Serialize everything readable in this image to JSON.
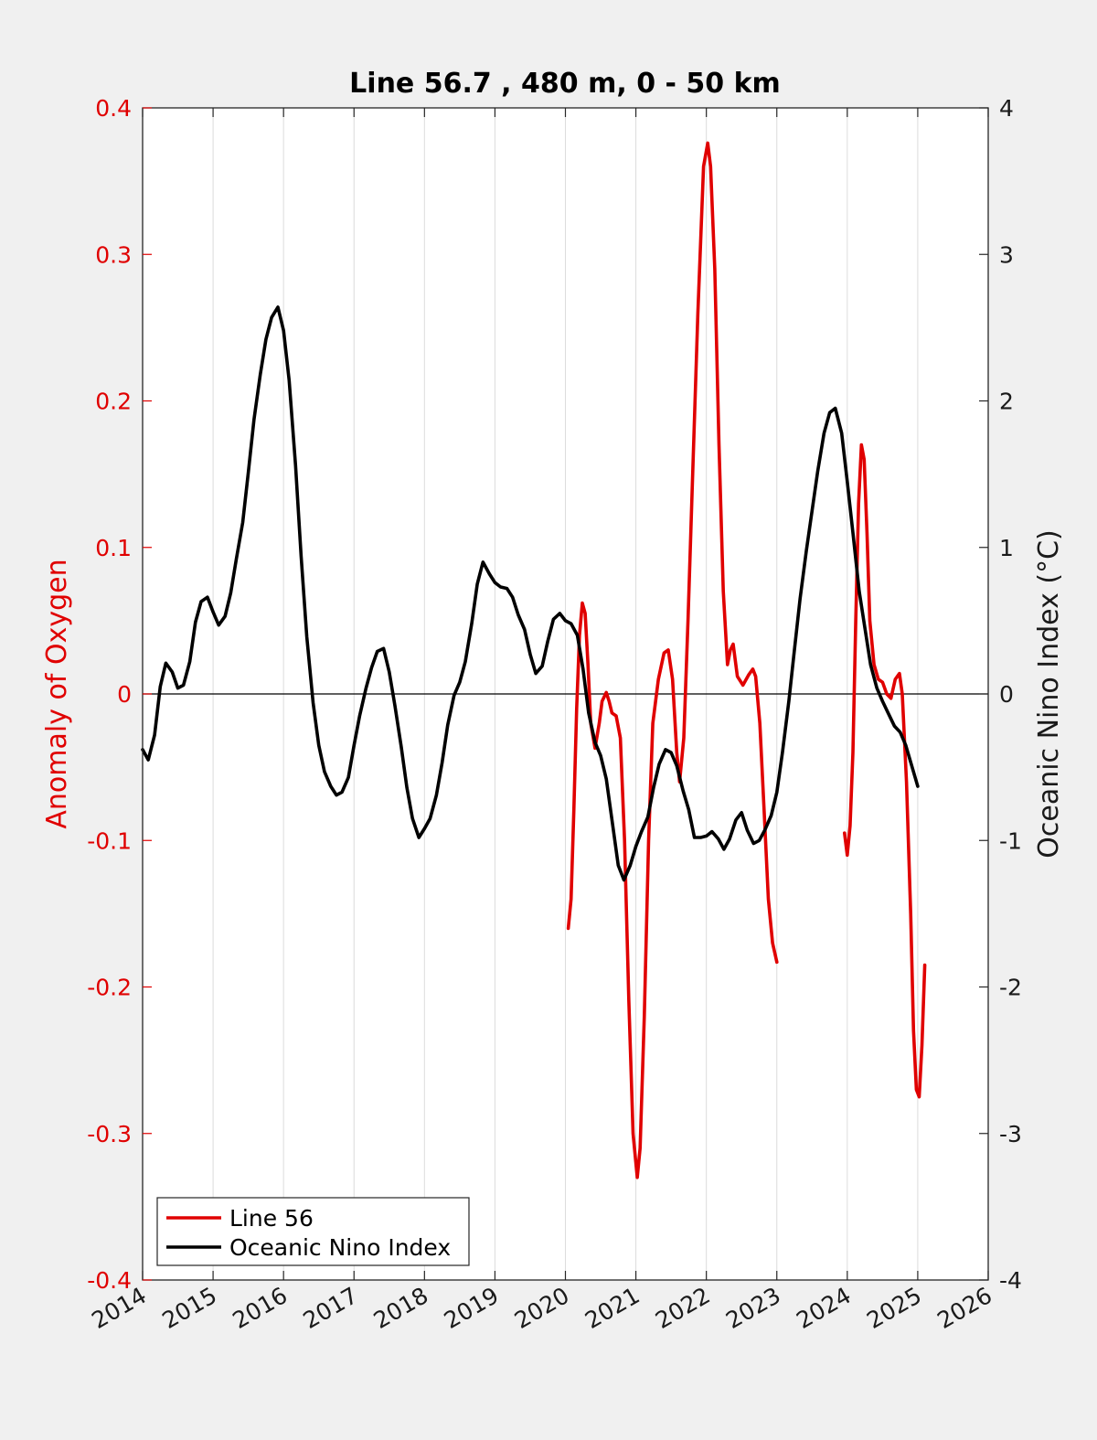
{
  "chart_data": {
    "type": "line",
    "title": "Line 56.7 , 480 m, 0 - 50 km",
    "xlabel": "",
    "ylabel_left": "Anomaly of Oxygen",
    "ylabel_right": "Oceanic Nino Index (°C)",
    "xlim": [
      2014,
      2026
    ],
    "ylim_left": [
      -0.4,
      0.4
    ],
    "ylim_right": [
      -4,
      4
    ],
    "x_ticks": [
      "2014",
      "2015",
      "2016",
      "2017",
      "2018",
      "2019",
      "2020",
      "2021",
      "2022",
      "2023",
      "2024",
      "2025",
      "2026"
    ],
    "y_ticks_left": [
      "-0.4",
      "-0.3",
      "-0.2",
      "-0.1",
      "0",
      "0.1",
      "0.2",
      "0.3",
      "0.4"
    ],
    "y_ticks_right": [
      "-4",
      "-3",
      "-2",
      "-1",
      "0",
      "1",
      "2",
      "3",
      "4"
    ],
    "grid": "x-major",
    "zero_line": true,
    "legend_position": "bottom-left",
    "colors": {
      "line56": "#e00000",
      "oni": "#000000",
      "plot_bg": "#ffffff",
      "figure_bg": "#f0f0f0"
    },
    "series": [
      {
        "name": "Line 56",
        "axis": "left",
        "segments": [
          [
            [
              2020.04,
              -0.16
            ],
            [
              2020.08,
              -0.14
            ],
            [
              2020.12,
              -0.08
            ],
            [
              2020.16,
              -0.01
            ],
            [
              2020.2,
              0.04
            ],
            [
              2020.24,
              0.062
            ],
            [
              2020.28,
              0.055
            ],
            [
              2020.32,
              0.02
            ],
            [
              2020.36,
              -0.02
            ],
            [
              2020.42,
              -0.037
            ],
            [
              2020.48,
              -0.02
            ],
            [
              2020.52,
              -0.005
            ],
            [
              2020.58,
              0.001
            ],
            [
              2020.62,
              -0.005
            ],
            [
              2020.66,
              -0.013
            ],
            [
              2020.72,
              -0.015
            ],
            [
              2020.78,
              -0.03
            ],
            [
              2020.84,
              -0.1
            ],
            [
              2020.9,
              -0.21
            ],
            [
              2020.96,
              -0.3
            ],
            [
              2021.02,
              -0.33
            ],
            [
              2021.06,
              -0.31
            ],
            [
              2021.12,
              -0.22
            ],
            [
              2021.18,
              -0.1
            ],
            [
              2021.24,
              -0.02
            ],
            [
              2021.32,
              0.01
            ],
            [
              2021.4,
              0.028
            ],
            [
              2021.46,
              0.03
            ],
            [
              2021.52,
              0.01
            ],
            [
              2021.58,
              -0.04
            ],
            [
              2021.62,
              -0.06
            ],
            [
              2021.68,
              -0.03
            ],
            [
              2021.74,
              0.05
            ],
            [
              2021.8,
              0.14
            ],
            [
              2021.88,
              0.26
            ],
            [
              2021.96,
              0.36
            ],
            [
              2022.02,
              0.376
            ],
            [
              2022.06,
              0.36
            ],
            [
              2022.12,
              0.29
            ],
            [
              2022.18,
              0.17
            ],
            [
              2022.24,
              0.07
            ],
            [
              2022.3,
              0.02
            ],
            [
              2022.34,
              0.03
            ],
            [
              2022.38,
              0.034
            ],
            [
              2022.44,
              0.012
            ],
            [
              2022.52,
              0.006
            ],
            [
              2022.6,
              0.013
            ],
            [
              2022.66,
              0.017
            ],
            [
              2022.7,
              0.012
            ],
            [
              2022.76,
              -0.02
            ],
            [
              2022.82,
              -0.08
            ],
            [
              2022.88,
              -0.14
            ],
            [
              2022.94,
              -0.17
            ],
            [
              2023.0,
              -0.183
            ]
          ],
          [
            [
              2023.96,
              -0.095
            ],
            [
              2024.0,
              -0.11
            ],
            [
              2024.04,
              -0.09
            ],
            [
              2024.08,
              -0.04
            ],
            [
              2024.12,
              0.05
            ],
            [
              2024.16,
              0.13
            ],
            [
              2024.2,
              0.17
            ],
            [
              2024.24,
              0.16
            ],
            [
              2024.28,
              0.11
            ],
            [
              2024.32,
              0.05
            ],
            [
              2024.38,
              0.02
            ],
            [
              2024.44,
              0.01
            ],
            [
              2024.5,
              0.008
            ],
            [
              2024.56,
              0.0
            ],
            [
              2024.62,
              -0.003
            ],
            [
              2024.68,
              0.01
            ],
            [
              2024.74,
              0.014
            ],
            [
              2024.78,
              0.0
            ],
            [
              2024.84,
              -0.06
            ],
            [
              2024.9,
              -0.15
            ],
            [
              2024.94,
              -0.23
            ],
            [
              2024.98,
              -0.27
            ],
            [
              2025.02,
              -0.275
            ],
            [
              2025.06,
              -0.24
            ],
            [
              2025.1,
              -0.185
            ]
          ]
        ]
      },
      {
        "name": "Oceanic Nino Index",
        "axis": "right",
        "segments": [
          [
            [
              2014.0,
              -0.38
            ],
            [
              2014.08,
              -0.45
            ],
            [
              2014.17,
              -0.28
            ],
            [
              2014.25,
              0.05
            ],
            [
              2014.33,
              0.21
            ],
            [
              2014.42,
              0.15
            ],
            [
              2014.5,
              0.04
            ],
            [
              2014.58,
              0.06
            ],
            [
              2014.67,
              0.22
            ],
            [
              2014.75,
              0.49
            ],
            [
              2014.83,
              0.63
            ],
            [
              2014.92,
              0.66
            ],
            [
              2015.0,
              0.56
            ],
            [
              2015.08,
              0.47
            ],
            [
              2015.17,
              0.53
            ],
            [
              2015.25,
              0.69
            ],
            [
              2015.33,
              0.92
            ],
            [
              2015.42,
              1.17
            ],
            [
              2015.5,
              1.51
            ],
            [
              2015.58,
              1.87
            ],
            [
              2015.67,
              2.18
            ],
            [
              2015.75,
              2.42
            ],
            [
              2015.83,
              2.57
            ],
            [
              2015.92,
              2.64
            ],
            [
              2016.0,
              2.48
            ],
            [
              2016.08,
              2.14
            ],
            [
              2016.17,
              1.56
            ],
            [
              2016.25,
              0.94
            ],
            [
              2016.33,
              0.39
            ],
            [
              2016.42,
              -0.06
            ],
            [
              2016.5,
              -0.35
            ],
            [
              2016.58,
              -0.53
            ],
            [
              2016.67,
              -0.63
            ],
            [
              2016.75,
              -0.69
            ],
            [
              2016.83,
              -0.67
            ],
            [
              2016.92,
              -0.57
            ],
            [
              2017.0,
              -0.35
            ],
            [
              2017.08,
              -0.15
            ],
            [
              2017.17,
              0.04
            ],
            [
              2017.25,
              0.18
            ],
            [
              2017.33,
              0.29
            ],
            [
              2017.42,
              0.31
            ],
            [
              2017.5,
              0.15
            ],
            [
              2017.58,
              -0.08
            ],
            [
              2017.67,
              -0.36
            ],
            [
              2017.75,
              -0.64
            ],
            [
              2017.83,
              -0.85
            ],
            [
              2017.92,
              -0.98
            ],
            [
              2018.0,
              -0.92
            ],
            [
              2018.08,
              -0.85
            ],
            [
              2018.17,
              -0.69
            ],
            [
              2018.25,
              -0.47
            ],
            [
              2018.33,
              -0.21
            ],
            [
              2018.42,
              -0.01
            ],
            [
              2018.5,
              0.08
            ],
            [
              2018.58,
              0.22
            ],
            [
              2018.67,
              0.48
            ],
            [
              2018.75,
              0.75
            ],
            [
              2018.83,
              0.9
            ],
            [
              2018.92,
              0.82
            ],
            [
              2019.0,
              0.76
            ],
            [
              2019.08,
              0.73
            ],
            [
              2019.17,
              0.72
            ],
            [
              2019.25,
              0.66
            ],
            [
              2019.33,
              0.54
            ],
            [
              2019.42,
              0.44
            ],
            [
              2019.5,
              0.27
            ],
            [
              2019.58,
              0.14
            ],
            [
              2019.67,
              0.19
            ],
            [
              2019.75,
              0.36
            ],
            [
              2019.83,
              0.51
            ],
            [
              2019.92,
              0.55
            ],
            [
              2020.0,
              0.5
            ],
            [
              2020.08,
              0.48
            ],
            [
              2020.17,
              0.4
            ],
            [
              2020.25,
              0.17
            ],
            [
              2020.33,
              -0.13
            ],
            [
              2020.42,
              -0.33
            ],
            [
              2020.5,
              -0.42
            ],
            [
              2020.58,
              -0.58
            ],
            [
              2020.67,
              -0.89
            ],
            [
              2020.75,
              -1.17
            ],
            [
              2020.83,
              -1.27
            ],
            [
              2020.92,
              -1.17
            ],
            [
              2021.0,
              -1.04
            ],
            [
              2021.08,
              -0.94
            ],
            [
              2021.17,
              -0.84
            ],
            [
              2021.25,
              -0.64
            ],
            [
              2021.33,
              -0.48
            ],
            [
              2021.42,
              -0.38
            ],
            [
              2021.5,
              -0.4
            ],
            [
              2021.58,
              -0.49
            ],
            [
              2021.67,
              -0.66
            ],
            [
              2021.75,
              -0.79
            ],
            [
              2021.83,
              -0.98
            ],
            [
              2021.92,
              -0.98
            ],
            [
              2022.0,
              -0.97
            ],
            [
              2022.08,
              -0.94
            ],
            [
              2022.17,
              -0.99
            ],
            [
              2022.25,
              -1.06
            ],
            [
              2022.33,
              -0.99
            ],
            [
              2022.42,
              -0.86
            ],
            [
              2022.5,
              -0.81
            ],
            [
              2022.58,
              -0.93
            ],
            [
              2022.67,
              -1.02
            ],
            [
              2022.75,
              -1.0
            ],
            [
              2022.83,
              -0.93
            ],
            [
              2022.92,
              -0.83
            ],
            [
              2023.0,
              -0.67
            ],
            [
              2023.08,
              -0.4
            ],
            [
              2023.17,
              -0.05
            ],
            [
              2023.25,
              0.3
            ],
            [
              2023.33,
              0.65
            ],
            [
              2023.42,
              0.98
            ],
            [
              2023.5,
              1.25
            ],
            [
              2023.58,
              1.52
            ],
            [
              2023.67,
              1.78
            ],
            [
              2023.75,
              1.92
            ],
            [
              2023.83,
              1.95
            ],
            [
              2023.92,
              1.78
            ],
            [
              2024.0,
              1.45
            ],
            [
              2024.08,
              1.1
            ],
            [
              2024.17,
              0.7
            ],
            [
              2024.25,
              0.45
            ],
            [
              2024.33,
              0.2
            ],
            [
              2024.42,
              0.04
            ],
            [
              2024.5,
              -0.05
            ],
            [
              2024.58,
              -0.13
            ],
            [
              2024.67,
              -0.22
            ],
            [
              2024.75,
              -0.26
            ],
            [
              2024.83,
              -0.35
            ],
            [
              2024.92,
              -0.5
            ],
            [
              2025.0,
              -0.63
            ]
          ]
        ]
      }
    ]
  }
}
